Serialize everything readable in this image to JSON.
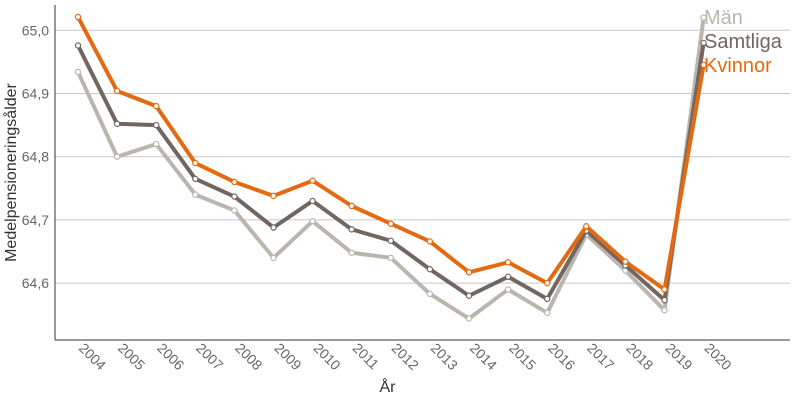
{
  "chart_data": {
    "type": "line",
    "xlabel": "År",
    "ylabel": "Medelpensioneringsålder",
    "x": [
      "2004",
      "2005",
      "2006",
      "2007",
      "2008",
      "2009",
      "2010",
      "2011",
      "2012",
      "2013",
      "2014",
      "2015",
      "2016",
      "2017",
      "2018",
      "2019",
      "2020"
    ],
    "ylim": [
      64.51,
      65.04
    ],
    "yticks": [
      64.6,
      64.7,
      64.8,
      64.9,
      65.0
    ],
    "ytick_labels": [
      "64,6",
      "64,7",
      "64,8",
      "64,9",
      "65,0"
    ],
    "grid": "horizontal",
    "legend": "end-of-line labels, top-right",
    "series": [
      {
        "name": "Män",
        "color": "#bcb5ae",
        "values": [
          64.934,
          64.8,
          64.82,
          64.74,
          64.715,
          64.64,
          64.698,
          64.648,
          64.64,
          64.583,
          64.544,
          64.59,
          64.553,
          64.677,
          64.62,
          64.557,
          65.02
        ]
      },
      {
        "name": "Samtliga",
        "color": "#716660",
        "values": [
          64.976,
          64.852,
          64.85,
          64.765,
          64.737,
          64.688,
          64.73,
          64.685,
          64.667,
          64.622,
          64.58,
          64.61,
          64.575,
          64.683,
          64.628,
          64.573,
          64.98
        ]
      },
      {
        "name": "Kvinnor",
        "color": "#e36a10",
        "values": [
          65.021,
          64.904,
          64.88,
          64.79,
          64.76,
          64.738,
          64.762,
          64.722,
          64.694,
          64.666,
          64.617,
          64.633,
          64.6,
          64.69,
          64.634,
          64.59,
          64.945
        ]
      }
    ]
  }
}
